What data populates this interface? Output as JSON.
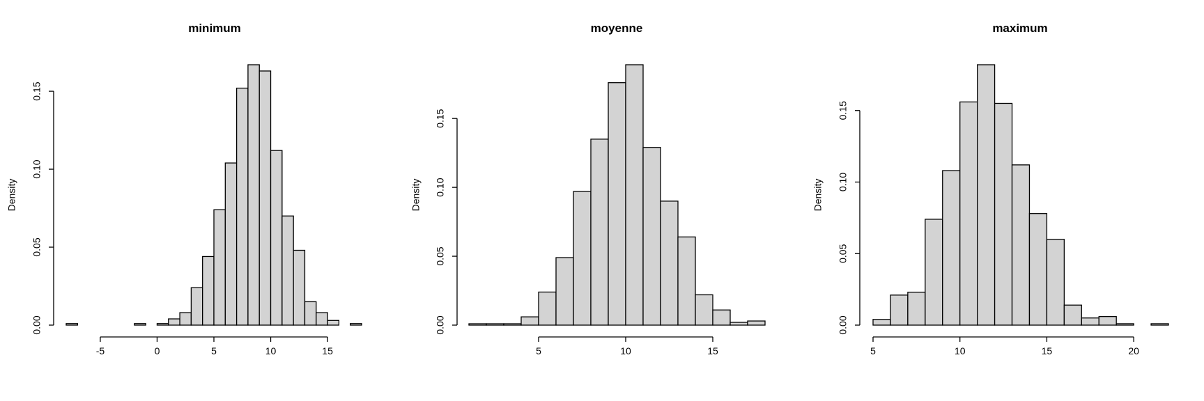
{
  "chart_data": [
    {
      "type": "bar",
      "title": "minimum",
      "xlabel": "",
      "ylabel": "Density",
      "bin_width": 1,
      "bin_edges": [
        -8,
        18
      ],
      "values": [
        0.001,
        0,
        0,
        0,
        0,
        0,
        0.001,
        0,
        0.001,
        0.004,
        0.008,
        0.024,
        0.044,
        0.074,
        0.104,
        0.152,
        0.167,
        0.163,
        0.112,
        0.07,
        0.048,
        0.015,
        0.008,
        0.003,
        0,
        0.001
      ],
      "xticks": [
        -5,
        0,
        5,
        10,
        15
      ],
      "yticks": [
        0.0,
        0.05,
        0.1,
        0.15
      ],
      "ytick_labels": [
        "0.00",
        "0.05",
        "0.10",
        "0.15"
      ],
      "xlim": [
        -8,
        18
      ],
      "ylim": [
        0,
        0.167
      ]
    },
    {
      "type": "bar",
      "title": "moyenne",
      "xlabel": "",
      "ylabel": "Density",
      "bin_width": 1,
      "bin_edges": [
        1,
        18
      ],
      "values": [
        0.001,
        0.001,
        0.001,
        0.006,
        0.024,
        0.049,
        0.097,
        0.135,
        0.176,
        0.189,
        0.129,
        0.09,
        0.064,
        0.022,
        0.011,
        0.002,
        0.003
      ],
      "xticks": [
        5,
        10,
        15
      ],
      "yticks": [
        0.0,
        0.05,
        0.1,
        0.15
      ],
      "ytick_labels": [
        "0.00",
        "0.05",
        "0.10",
        "0.15"
      ],
      "xlim": [
        1,
        18
      ],
      "ylim": [
        0,
        0.189
      ]
    },
    {
      "type": "bar",
      "title": "maximum",
      "xlabel": "",
      "ylabel": "Density",
      "bin_width": 1,
      "bin_edges": [
        5,
        22
      ],
      "values": [
        0.004,
        0.021,
        0.023,
        0.074,
        0.108,
        0.156,
        0.182,
        0.155,
        0.112,
        0.078,
        0.06,
        0.014,
        0.005,
        0.006,
        0.001,
        0,
        0.001
      ],
      "xticks": [
        5,
        10,
        15,
        20
      ],
      "yticks": [
        0.0,
        0.05,
        0.1,
        0.15
      ],
      "ytick_labels": [
        "0.00",
        "0.05",
        "0.10",
        "0.15"
      ],
      "xlim": [
        5,
        22
      ],
      "ylim": [
        0,
        0.182
      ]
    }
  ]
}
